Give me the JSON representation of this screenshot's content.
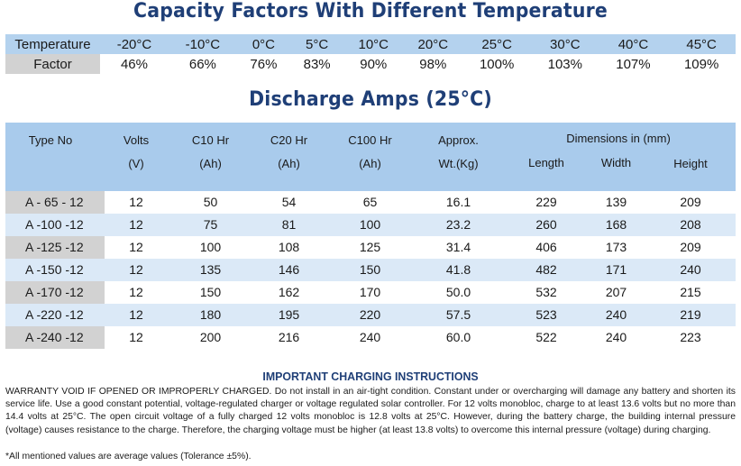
{
  "capacity": {
    "title": "Capacity Factors With Different Temperature",
    "temperature_label": "Temperature",
    "factor_label": "Factor",
    "temperatures": [
      "-20°C",
      "-10°C",
      "0°C",
      "5°C",
      "10°C",
      "20°C",
      "25°C",
      "30°C",
      "40°C",
      "45°C"
    ],
    "factors": [
      "46%",
      "66%",
      "76%",
      "83%",
      "90%",
      "98%",
      "100%",
      "103%",
      "107%",
      "109%"
    ]
  },
  "discharge": {
    "title": "Discharge Amps (25°C)",
    "headers": {
      "type_no": "Type No",
      "volts": "Volts",
      "volts_unit": "(V)",
      "c10": "C10 Hr",
      "c10_unit": "(Ah)",
      "c20": "C20 Hr",
      "c20_unit": "(Ah)",
      "c100": "C100 Hr",
      "c100_unit": "(Ah)",
      "approx": "Approx.",
      "wt_unit": "Wt.(Kg)",
      "dimensions": "Dimensions in (mm)",
      "length": "Length",
      "width": "Width",
      "height": "Height"
    },
    "rows": [
      [
        "A - 65 - 12",
        "12",
        "50",
        "54",
        "65",
        "16.1",
        "229",
        "139",
        "209"
      ],
      [
        "A -100 -12",
        "12",
        "75",
        "81",
        "100",
        "23.2",
        "260",
        "168",
        "208"
      ],
      [
        "A -125 -12",
        "12",
        "100",
        "108",
        "125",
        "31.4",
        "406",
        "173",
        "209"
      ],
      [
        "A -150 -12",
        "12",
        "135",
        "146",
        "150",
        "41.8",
        "482",
        "171",
        "240"
      ],
      [
        "A -170 -12",
        "12",
        "150",
        "162",
        "170",
        "50.0",
        "532",
        "207",
        "215"
      ],
      [
        "A -220 -12",
        "12",
        "180",
        "195",
        "220",
        "57.5",
        "523",
        "240",
        "219"
      ],
      [
        "A -240 -12",
        "12",
        "200",
        "216",
        "240",
        "60.0",
        "522",
        "240",
        "223"
      ]
    ]
  },
  "notes": {
    "title": "IMPORTANT CHARGING INSTRUCTIONS",
    "body": "WARRANTY VOID IF OPENED OR IMPROPERLY CHARGED. Do not install in an air-tight condition. Constant under or overcharging will damage any battery and shorten its service life. Use a good constant potential, voltage-regulated charger or voltage regulated solar controller. For 12 volts monobloc, charge to at least 13.6 volts but no more than 14.4 volts at 25°C. The open circuit voltage of a fully charged 12 volts monobloc is 12.8 volts at 25°C. However, during the battery charge, the building internal pressure (voltage) causes resistance to the charge. Therefore, the charging voltage must be higher (at least 13.8 volts) to overcome this internal pressure (voltage) during charging.",
    "footnote": "*All mentioned values are average values (Tolerance ±5%)."
  }
}
